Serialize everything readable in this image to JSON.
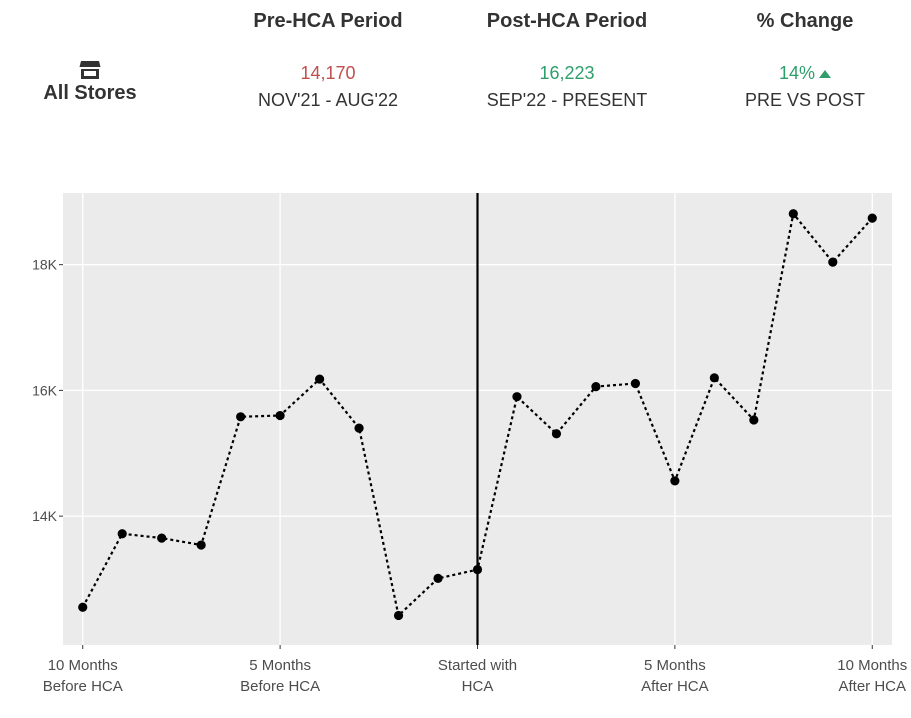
{
  "colors": {
    "pre_value": "#c0504d",
    "post_value": "#2e9e6b",
    "change_value": "#2e9e6b",
    "panel_bg": "#ebebeb",
    "grid": "#ffffff",
    "line": "#000000",
    "axis_text": "#4d4d4d"
  },
  "header": {
    "store": {
      "icon": "store-icon",
      "label": "All Stores"
    },
    "pre": {
      "title": "Pre-HCA Period",
      "value": "14,170",
      "range": "NOV'21 - AUG'22"
    },
    "post": {
      "title": "Post-HCA Period",
      "value": "16,223",
      "range": "SEP'22 - PRESENT"
    },
    "change": {
      "title": "% Change",
      "value": "14%",
      "direction_icon": "triangle-up-icon",
      "caption": "PRE VS POST"
    }
  },
  "chart_data": {
    "type": "line",
    "line_style": "dotted",
    "markers": true,
    "x": [
      -10,
      -9,
      -8,
      -7,
      -6,
      -5,
      -4,
      -3,
      -2,
      -1,
      0,
      1,
      2,
      3,
      4,
      5,
      6,
      7,
      8,
      9,
      10
    ],
    "values": [
      12550,
      13720,
      13650,
      13540,
      15580,
      15600,
      16180,
      15400,
      12420,
      13010,
      13150,
      15900,
      15310,
      16060,
      16110,
      14560,
      16200,
      15530,
      18810,
      18040,
      18740
    ],
    "x_ticks": [
      {
        "x": -10,
        "line1": "10 Months",
        "line2": "Before HCA"
      },
      {
        "x": -5,
        "line1": "5 Months",
        "line2": "Before HCA"
      },
      {
        "x": 0,
        "line1": "Started with",
        "line2": "HCA"
      },
      {
        "x": 5,
        "line1": "5 Months",
        "line2": "After HCA"
      },
      {
        "x": 10,
        "line1": "10 Months",
        "line2": "After HCA"
      }
    ],
    "y_ticks": [
      {
        "value": 14000,
        "label": "14K"
      },
      {
        "value": 16000,
        "label": "16K"
      },
      {
        "value": 18000,
        "label": "18K"
      }
    ],
    "vline_x": 0,
    "xlim": [
      -10.5,
      10.5
    ],
    "ylim": [
      11950,
      19140
    ],
    "grid": true,
    "legend": "none"
  }
}
